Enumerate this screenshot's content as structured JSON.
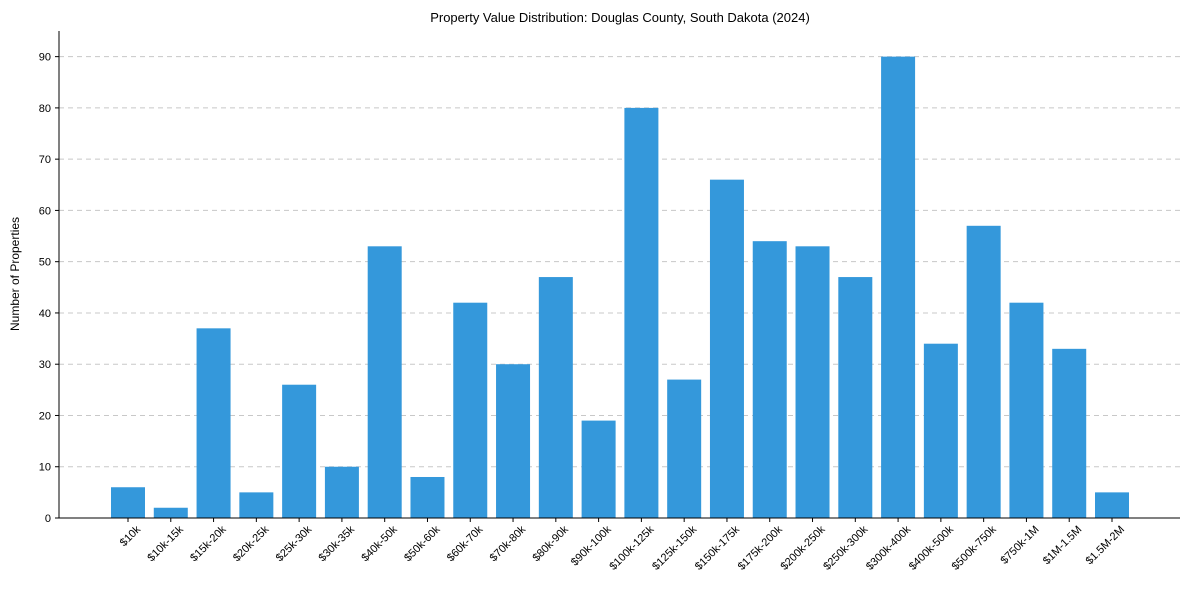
{
  "chart_data": {
    "type": "bar",
    "title": "Property Value Distribution: Douglas County, South Dakota (2024)",
    "xlabel": "",
    "ylabel": "Number of Properties",
    "ylim": [
      0,
      95
    ],
    "yticks": [
      0,
      10,
      20,
      30,
      40,
      50,
      60,
      70,
      80,
      90
    ],
    "grid": "y-dashed",
    "bar_color": "#3498db",
    "categories": [
      "$10k",
      "$10k-15k",
      "$15k-20k",
      "$20k-25k",
      "$25k-30k",
      "$30k-35k",
      "$40k-50k",
      "$50k-60k",
      "$60k-70k",
      "$70k-80k",
      "$80k-90k",
      "$90k-100k",
      "$100k-125k",
      "$125k-150k",
      "$150k-175k",
      "$175k-200k",
      "$200k-250k",
      "$250k-300k",
      "$300k-400k",
      "$400k-500k",
      "$500k-750k",
      "$750k-1M",
      "$1M-1.5M",
      "$1.5M-2M"
    ],
    "values": [
      6,
      2,
      37,
      5,
      26,
      10,
      53,
      8,
      42,
      30,
      47,
      19,
      80,
      27,
      66,
      54,
      53,
      47,
      90,
      34,
      57,
      42,
      33,
      5
    ]
  }
}
